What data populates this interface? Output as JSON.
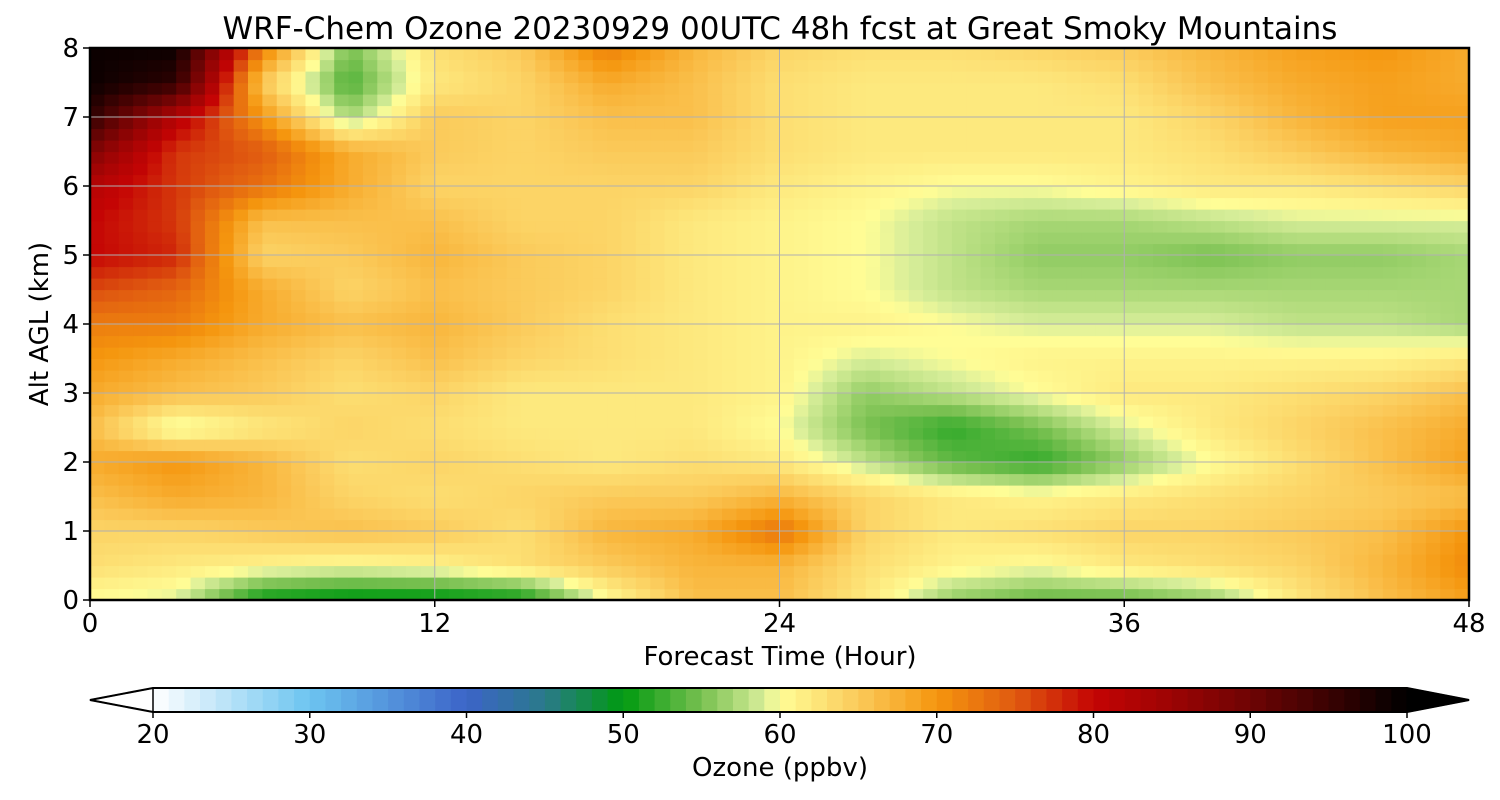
{
  "chart_data": [
    {
      "type": "heatmap",
      "title": "WRF-Chem Ozone  20230929 00UTC 48h fcst at Great Smoky Mountains",
      "xlabel": "Forecast Time (Hour)",
      "ylabel": "Alt AGL (km)",
      "xlim": [
        0,
        48
      ],
      "ylim": [
        0,
        8
      ],
      "x_ticks": [
        0,
        12,
        24,
        36,
        48
      ],
      "y_ticks": [
        0,
        1,
        2,
        3,
        4,
        5,
        6,
        7,
        8
      ],
      "grid": true,
      "x": [
        0,
        3,
        6,
        9,
        12,
        15,
        18,
        21,
        24,
        27,
        30,
        33,
        36,
        39,
        42,
        45,
        48
      ],
      "y": [
        0,
        0.5,
        1,
        1.5,
        2,
        2.5,
        3,
        3.5,
        4,
        4.5,
        5,
        5.5,
        6,
        6.5,
        7,
        7.5,
        8
      ],
      "z": [
        [
          60,
          59,
          50,
          49,
          49,
          50,
          60,
          66,
          66,
          62,
          56,
          54,
          54,
          56,
          62,
          66,
          69
        ],
        [
          63,
          62,
          61,
          60,
          61,
          63,
          65,
          67,
          67,
          63,
          61,
          60,
          62,
          63,
          64,
          67,
          71
        ],
        [
          64,
          64,
          65,
          66,
          65,
          63,
          67,
          68,
          73,
          64,
          62,
          63,
          64,
          64,
          65,
          66,
          70
        ],
        [
          66,
          68,
          67,
          64,
          63,
          64,
          65,
          65,
          67,
          64,
          62,
          61,
          62,
          63,
          64,
          65,
          66
        ],
        [
          68,
          70,
          67,
          63,
          64,
          63,
          62,
          63,
          62,
          58,
          54,
          52,
          56,
          60,
          63,
          66,
          69
        ],
        [
          66,
          59,
          62,
          64,
          63,
          62,
          62,
          62,
          60,
          55,
          52,
          55,
          59,
          62,
          64,
          66,
          68
        ],
        [
          68,
          66,
          65,
          63,
          64,
          62,
          62,
          62,
          61,
          56,
          58,
          60,
          62,
          62,
          63,
          64,
          66
        ],
        [
          70,
          68,
          66,
          64,
          66,
          64,
          63,
          62,
          61,
          59,
          60,
          61,
          61,
          61,
          61,
          61,
          62
        ],
        [
          72,
          72,
          68,
          66,
          67,
          65,
          63,
          62,
          61,
          61,
          60,
          59,
          59,
          59,
          58,
          58,
          57
        ],
        [
          76,
          74,
          68,
          64,
          66,
          65,
          64,
          62,
          61,
          60,
          58,
          57,
          57,
          57,
          57,
          57,
          57
        ],
        [
          80,
          78,
          64,
          65,
          67,
          65,
          64,
          62,
          61,
          60,
          58,
          56,
          56,
          55,
          56,
          56,
          57
        ],
        [
          80,
          77,
          66,
          66,
          66,
          64,
          64,
          62,
          61,
          60,
          58,
          57,
          57,
          58,
          59,
          59,
          59
        ],
        [
          82,
          77,
          73,
          68,
          64,
          64,
          64,
          64,
          62,
          61,
          60,
          60,
          61,
          62,
          62,
          63,
          64
        ],
        [
          88,
          77,
          75,
          68,
          65,
          64,
          65,
          65,
          63,
          62,
          62,
          62,
          62,
          63,
          65,
          67,
          68
        ],
        [
          96,
          82,
          70,
          57,
          65,
          64,
          66,
          66,
          63,
          62,
          62,
          62,
          62,
          64,
          67,
          69,
          69
        ],
        [
          99,
          96,
          65,
          53,
          62,
          64,
          68,
          66,
          63,
          62,
          62,
          62,
          63,
          66,
          68,
          69,
          68
        ],
        [
          99,
          99,
          72,
          55,
          63,
          65,
          72,
          67,
          64,
          63,
          63,
          64,
          65,
          67,
          69,
          70,
          68
        ]
      ]
    },
    {
      "type": "colorbar",
      "label": "Ozone  (ppbv)",
      "range": [
        20,
        100
      ],
      "extend": "both",
      "tick_values": [
        20,
        30,
        40,
        50,
        60,
        70,
        80,
        90,
        100
      ],
      "tick_labels": [
        "20",
        "30",
        "40",
        "50",
        "60",
        "70",
        "80",
        "90",
        "100"
      ],
      "colormap_stops": [
        [
          20,
          "#ffffff"
        ],
        [
          30,
          "#6cc4f0"
        ],
        [
          40,
          "#3c64c8"
        ],
        [
          45,
          "#2a7a8a"
        ],
        [
          50,
          "#009a10"
        ],
        [
          55,
          "#78c050"
        ],
        [
          59,
          "#d8ee9a"
        ],
        [
          60,
          "#fffd96"
        ],
        [
          65,
          "#fbca5a"
        ],
        [
          70,
          "#f5960e"
        ],
        [
          75,
          "#e05a10"
        ],
        [
          80,
          "#c40404"
        ],
        [
          85,
          "#9c0404"
        ],
        [
          90,
          "#6e0404"
        ],
        [
          95,
          "#3a0202"
        ],
        [
          100,
          "#000000"
        ]
      ]
    }
  ]
}
